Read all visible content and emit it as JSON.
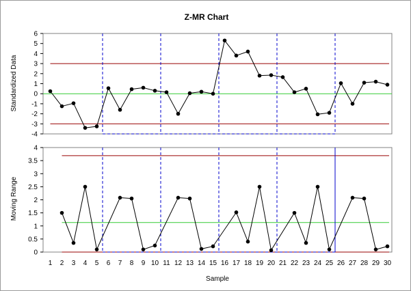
{
  "chart_data": {
    "type": "line",
    "title": "Z-MR Chart",
    "xlabel": "Sample",
    "x": [
      1,
      2,
      3,
      4,
      5,
      6,
      7,
      8,
      9,
      10,
      11,
      12,
      13,
      14,
      15,
      16,
      17,
      18,
      19,
      20,
      21,
      22,
      23,
      24,
      25,
      26,
      27,
      28,
      29,
      30
    ],
    "x_ticks": [
      "1",
      "2",
      "3",
      "4",
      "5",
      "6",
      "7",
      "8",
      "9",
      "10",
      "11",
      "12",
      "13",
      "14",
      "15",
      "16",
      "17",
      "18",
      "19",
      "20",
      "21",
      "22",
      "23",
      "24",
      "25",
      "26",
      "27",
      "28",
      "29",
      "30"
    ],
    "stage_breaks": [
      5.5,
      10.5,
      15.5,
      20.5,
      25.5
    ],
    "panels": [
      {
        "name": "z",
        "ylabel": "Standardized Data",
        "ylim": [
          -4,
          6
        ],
        "yticks": [
          "6",
          "5",
          "4",
          "3",
          "2",
          "1",
          "0",
          "-1",
          "-2",
          "-3",
          "-4"
        ],
        "ytick_values": [
          6,
          5,
          4,
          3,
          2,
          1,
          0,
          -1,
          -2,
          -3,
          -4
        ],
        "center_line": 0,
        "upper_limit": 3,
        "lower_limit": -3,
        "values": [
          0.25,
          -1.25,
          -0.95,
          -3.4,
          -3.25,
          0.55,
          -1.6,
          0.45,
          0.6,
          0.3,
          0.15,
          -2.0,
          0.05,
          0.2,
          0.0,
          5.3,
          3.8,
          4.2,
          1.8,
          1.85,
          1.65,
          0.15,
          0.5,
          -2.05,
          -1.9,
          1.05,
          -1.0,
          1.1,
          1.2,
          0.9
        ]
      },
      {
        "name": "mr",
        "ylabel": "Moving Range",
        "ylim": [
          0,
          4
        ],
        "yticks": [
          "4",
          "3.5",
          "3",
          "2.5",
          "2",
          "1.5",
          "1",
          "0.5",
          "0"
        ],
        "ytick_values": [
          4,
          3.5,
          3,
          2.5,
          2,
          1.5,
          1,
          0.5,
          0
        ],
        "center_line": 1.13,
        "upper_limit": 3.69,
        "lower_limit": 0,
        "values": [
          null,
          1.5,
          0.35,
          2.5,
          0.1,
          null,
          2.08,
          2.05,
          0.1,
          0.25,
          null,
          2.08,
          2.05,
          0.12,
          0.22,
          null,
          1.52,
          0.4,
          2.5,
          0.07,
          null,
          1.5,
          0.35,
          2.5,
          0.1,
          null,
          2.08,
          2.05,
          0.1,
          0.22
        ]
      }
    ],
    "colors": {
      "series": "#000000",
      "center_line": "#33cc33",
      "control_limit": "#990000",
      "stage_break": "#0000cc",
      "frame": "#808080"
    }
  }
}
